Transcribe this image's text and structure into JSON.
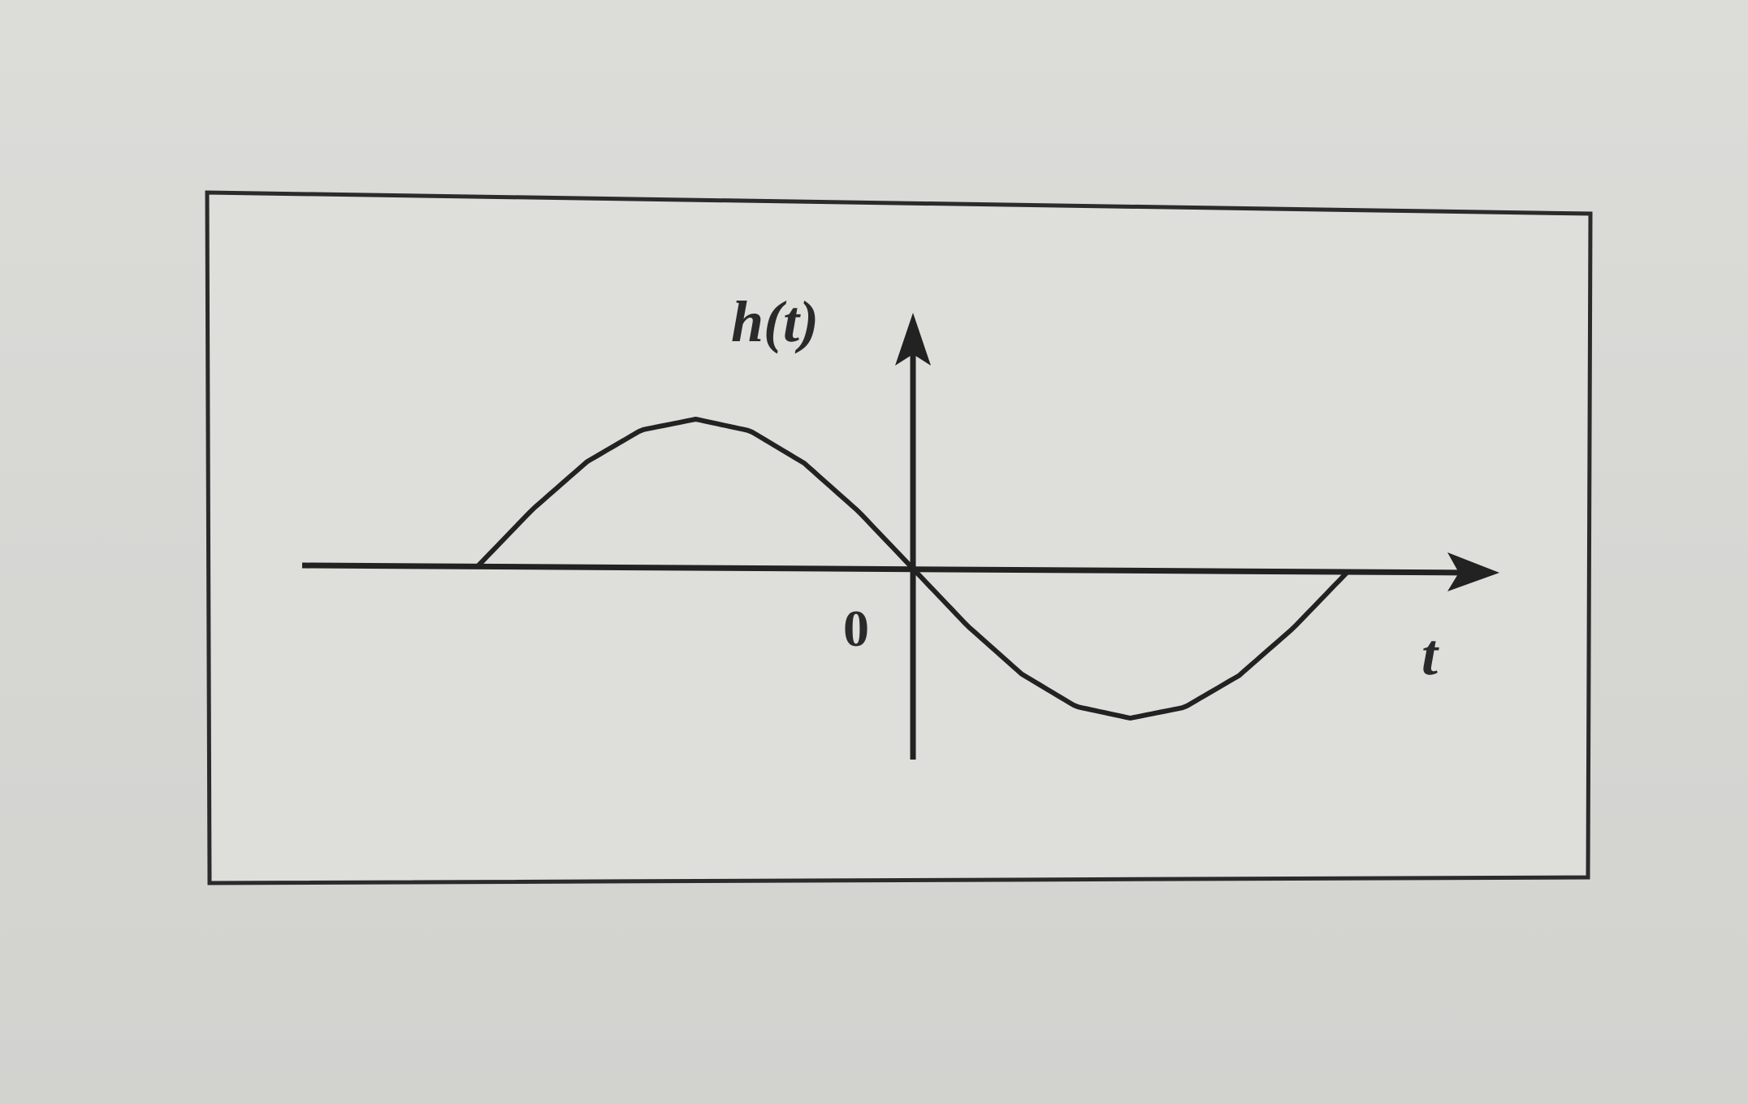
{
  "chart_data": {
    "type": "line",
    "ylabel": "h(t)",
    "xlabel": "t",
    "origin_label": "0",
    "series": [
      {
        "x": [
          -1.0,
          -0.875,
          -0.75,
          -0.625,
          -0.5,
          -0.375,
          -0.25,
          -0.125,
          0.0,
          0.125,
          0.25,
          0.375,
          0.5,
          0.625,
          0.75,
          0.875,
          1.0
        ],
        "values": [
          0.0,
          0.383,
          0.707,
          0.924,
          1.0,
          0.924,
          0.707,
          0.383,
          0.0,
          -0.383,
          -0.707,
          -0.924,
          -1.0,
          -0.924,
          -0.707,
          -0.383,
          0.0
        ]
      }
    ],
    "zero_outside": true,
    "grid": false,
    "legend": "none"
  }
}
